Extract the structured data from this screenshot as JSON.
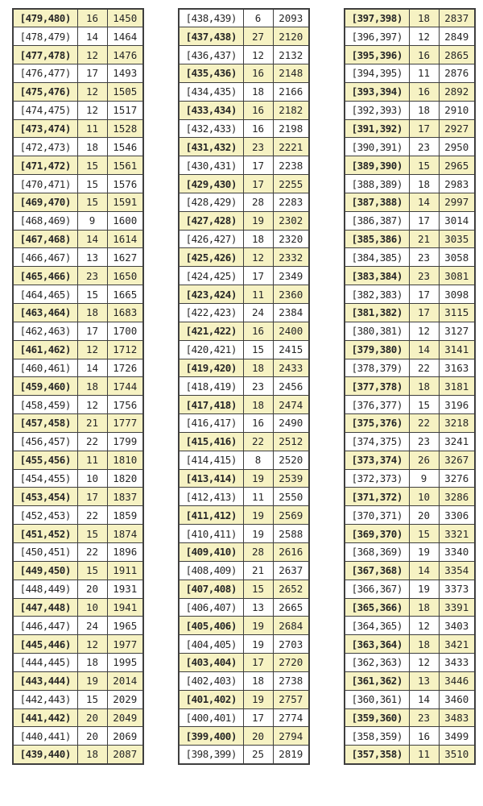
{
  "colors": {
    "highlight": "#f6f2c3",
    "border": "#3f3f3f",
    "text": "#262626",
    "background": "#ffffff"
  },
  "chart_data": {
    "type": "table",
    "columns": [
      "class_interval",
      "frequency",
      "cumulative_frequency"
    ],
    "layout_hints": {
      "tables_side_by_side": 3,
      "rows_per_table": 41,
      "highlight_rule": "rows whose interval lower bound is odd are shaded pale yellow",
      "interval_order": "descending from [479,480) to [357,358)"
    },
    "tables": [
      {
        "rows": [
          [
            "[479,480)",
            16,
            1450
          ],
          [
            "[478,479)",
            14,
            1464
          ],
          [
            "[477,478)",
            12,
            1476
          ],
          [
            "[476,477)",
            17,
            1493
          ],
          [
            "[475,476)",
            12,
            1505
          ],
          [
            "[474,475)",
            12,
            1517
          ],
          [
            "[473,474)",
            11,
            1528
          ],
          [
            "[472,473)",
            18,
            1546
          ],
          [
            "[471,472)",
            15,
            1561
          ],
          [
            "[470,471)",
            15,
            1576
          ],
          [
            "[469,470)",
            15,
            1591
          ],
          [
            "[468,469)",
            9,
            1600
          ],
          [
            "[467,468)",
            14,
            1614
          ],
          [
            "[466,467)",
            13,
            1627
          ],
          [
            "[465,466)",
            23,
            1650
          ],
          [
            "[464,465)",
            15,
            1665
          ],
          [
            "[463,464)",
            18,
            1683
          ],
          [
            "[462,463)",
            17,
            1700
          ],
          [
            "[461,462)",
            12,
            1712
          ],
          [
            "[460,461)",
            14,
            1726
          ],
          [
            "[459,460)",
            18,
            1744
          ],
          [
            "[458,459)",
            12,
            1756
          ],
          [
            "[457,458)",
            21,
            1777
          ],
          [
            "[456,457)",
            22,
            1799
          ],
          [
            "[455,456)",
            11,
            1810
          ],
          [
            "[454,455)",
            10,
            1820
          ],
          [
            "[453,454)",
            17,
            1837
          ],
          [
            "[452,453)",
            22,
            1859
          ],
          [
            "[451,452)",
            15,
            1874
          ],
          [
            "[450,451)",
            22,
            1896
          ],
          [
            "[449,450)",
            15,
            1911
          ],
          [
            "[448,449)",
            20,
            1931
          ],
          [
            "[447,448)",
            10,
            1941
          ],
          [
            "[446,447)",
            24,
            1965
          ],
          [
            "[445,446)",
            12,
            1977
          ],
          [
            "[444,445)",
            18,
            1995
          ],
          [
            "[443,444)",
            19,
            2014
          ],
          [
            "[442,443)",
            15,
            2029
          ],
          [
            "[441,442)",
            20,
            2049
          ],
          [
            "[440,441)",
            20,
            2069
          ],
          [
            "[439,440)",
            18,
            2087
          ]
        ]
      },
      {
        "rows": [
          [
            "[438,439)",
            6,
            2093
          ],
          [
            "[437,438)",
            27,
            2120
          ],
          [
            "[436,437)",
            12,
            2132
          ],
          [
            "[435,436)",
            16,
            2148
          ],
          [
            "[434,435)",
            18,
            2166
          ],
          [
            "[433,434)",
            16,
            2182
          ],
          [
            "[432,433)",
            16,
            2198
          ],
          [
            "[431,432)",
            23,
            2221
          ],
          [
            "[430,431)",
            17,
            2238
          ],
          [
            "[429,430)",
            17,
            2255
          ],
          [
            "[428,429)",
            28,
            2283
          ],
          [
            "[427,428)",
            19,
            2302
          ],
          [
            "[426,427)",
            18,
            2320
          ],
          [
            "[425,426)",
            12,
            2332
          ],
          [
            "[424,425)",
            17,
            2349
          ],
          [
            "[423,424)",
            11,
            2360
          ],
          [
            "[422,423)",
            24,
            2384
          ],
          [
            "[421,422)",
            16,
            2400
          ],
          [
            "[420,421)",
            15,
            2415
          ],
          [
            "[419,420)",
            18,
            2433
          ],
          [
            "[418,419)",
            23,
            2456
          ],
          [
            "[417,418)",
            18,
            2474
          ],
          [
            "[416,417)",
            16,
            2490
          ],
          [
            "[415,416)",
            22,
            2512
          ],
          [
            "[414,415)",
            8,
            2520
          ],
          [
            "[413,414)",
            19,
            2539
          ],
          [
            "[412,413)",
            11,
            2550
          ],
          [
            "[411,412)",
            19,
            2569
          ],
          [
            "[410,411)",
            19,
            2588
          ],
          [
            "[409,410)",
            28,
            2616
          ],
          [
            "[408,409)",
            21,
            2637
          ],
          [
            "[407,408)",
            15,
            2652
          ],
          [
            "[406,407)",
            13,
            2665
          ],
          [
            "[405,406)",
            19,
            2684
          ],
          [
            "[404,405)",
            19,
            2703
          ],
          [
            "[403,404)",
            17,
            2720
          ],
          [
            "[402,403)",
            18,
            2738
          ],
          [
            "[401,402)",
            19,
            2757
          ],
          [
            "[400,401)",
            17,
            2774
          ],
          [
            "[399,400)",
            20,
            2794
          ],
          [
            "[398,399)",
            25,
            2819
          ]
        ]
      },
      {
        "rows": [
          [
            "[397,398)",
            18,
            2837
          ],
          [
            "[396,397)",
            12,
            2849
          ],
          [
            "[395,396)",
            16,
            2865
          ],
          [
            "[394,395)",
            11,
            2876
          ],
          [
            "[393,394)",
            16,
            2892
          ],
          [
            "[392,393)",
            18,
            2910
          ],
          [
            "[391,392)",
            17,
            2927
          ],
          [
            "[390,391)",
            23,
            2950
          ],
          [
            "[389,390)",
            15,
            2965
          ],
          [
            "[388,389)",
            18,
            2983
          ],
          [
            "[387,388)",
            14,
            2997
          ],
          [
            "[386,387)",
            17,
            3014
          ],
          [
            "[385,386)",
            21,
            3035
          ],
          [
            "[384,385)",
            23,
            3058
          ],
          [
            "[383,384)",
            23,
            3081
          ],
          [
            "[382,383)",
            17,
            3098
          ],
          [
            "[381,382)",
            17,
            3115
          ],
          [
            "[380,381)",
            12,
            3127
          ],
          [
            "[379,380)",
            14,
            3141
          ],
          [
            "[378,379)",
            22,
            3163
          ],
          [
            "[377,378)",
            18,
            3181
          ],
          [
            "[376,377)",
            15,
            3196
          ],
          [
            "[375,376)",
            22,
            3218
          ],
          [
            "[374,375)",
            23,
            3241
          ],
          [
            "[373,374)",
            26,
            3267
          ],
          [
            "[372,373)",
            9,
            3276
          ],
          [
            "[371,372)",
            10,
            3286
          ],
          [
            "[370,371)",
            20,
            3306
          ],
          [
            "[369,370)",
            15,
            3321
          ],
          [
            "[368,369)",
            19,
            3340
          ],
          [
            "[367,368)",
            14,
            3354
          ],
          [
            "[366,367)",
            19,
            3373
          ],
          [
            "[365,366)",
            18,
            3391
          ],
          [
            "[364,365)",
            12,
            3403
          ],
          [
            "[363,364)",
            18,
            3421
          ],
          [
            "[362,363)",
            12,
            3433
          ],
          [
            "[361,362)",
            13,
            3446
          ],
          [
            "[360,361)",
            14,
            3460
          ],
          [
            "[359,360)",
            23,
            3483
          ],
          [
            "[358,359)",
            16,
            3499
          ],
          [
            "[357,358)",
            11,
            3510
          ]
        ]
      }
    ]
  }
}
